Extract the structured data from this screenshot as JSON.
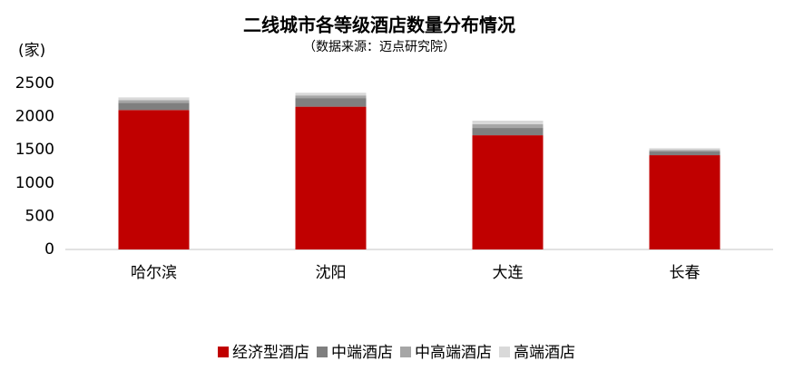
{
  "chart_data": {
    "type": "stacked_bar",
    "title": "二线城市各等级酒店数量分布情况",
    "subtitle": "（数据来源：迈点研究院）",
    "y_label": "(家)",
    "categories": [
      "哈尔滨",
      "沈阳",
      "大连",
      "长春"
    ],
    "series": [
      {
        "name": "经济型酒店",
        "color": "#c00000",
        "values": [
          2100,
          2150,
          1720,
          1420
        ]
      },
      {
        "name": "中端酒店",
        "color": "#7f7f7f",
        "values": [
          110,
          130,
          110,
          55
        ]
      },
      {
        "name": "中高端酒店",
        "color": "#a6a6a6",
        "values": [
          40,
          40,
          55,
          25
        ]
      },
      {
        "name": "高端酒店",
        "color": "#d9d9d9",
        "values": [
          40,
          40,
          55,
          25
        ]
      }
    ],
    "ylim": [
      0,
      2500
    ],
    "yticks": [
      0,
      500,
      1000,
      1500,
      2000,
      2500
    ],
    "grid": false,
    "legend": "bottom"
  }
}
